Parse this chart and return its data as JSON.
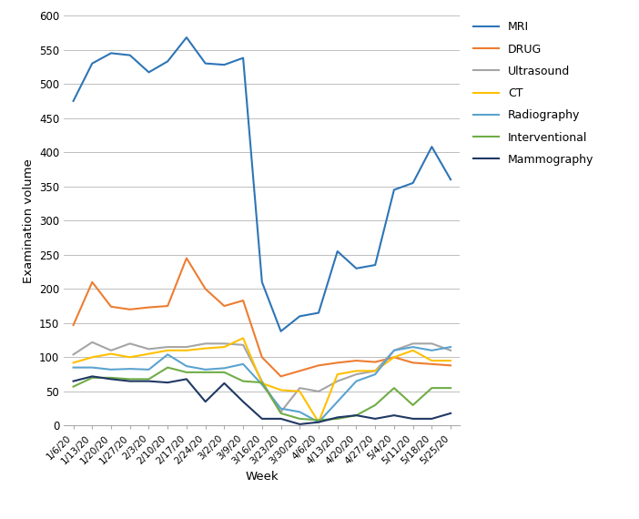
{
  "weeks": [
    "1/6/20",
    "1/13/20",
    "1/20/20",
    "1/27/20",
    "2/3/20",
    "2/10/20",
    "2/17/20",
    "2/24/20",
    "3/2/20",
    "3/9/20",
    "3/16/20",
    "3/23/20",
    "3/30/20",
    "4/6/20",
    "4/13/20",
    "4/20/20",
    "4/27/20",
    "5/4/20",
    "5/11/20",
    "5/18/20",
    "5/25/20"
  ],
  "MRI": [
    475,
    530,
    545,
    542,
    517,
    533,
    568,
    530,
    528,
    538,
    210,
    138,
    160,
    165,
    255,
    230,
    235,
    345,
    355,
    408,
    360
  ],
  "DRUG": [
    147,
    210,
    174,
    170,
    173,
    175,
    245,
    200,
    175,
    183,
    100,
    72,
    80,
    88,
    92,
    95,
    93,
    100,
    92,
    90,
    88
  ],
  "Ultrasound": [
    104,
    122,
    110,
    120,
    112,
    115,
    115,
    120,
    120,
    118,
    65,
    20,
    55,
    50,
    65,
    75,
    80,
    110,
    120,
    120,
    110
  ],
  "CT": [
    92,
    100,
    105,
    100,
    105,
    110,
    110,
    113,
    115,
    128,
    62,
    52,
    50,
    5,
    75,
    80,
    80,
    100,
    110,
    95,
    95
  ],
  "Radiography": [
    85,
    85,
    82,
    83,
    82,
    104,
    87,
    82,
    84,
    90,
    60,
    25,
    20,
    5,
    35,
    65,
    75,
    110,
    115,
    110,
    115
  ],
  "Interventional": [
    57,
    70,
    70,
    68,
    68,
    85,
    78,
    78,
    78,
    65,
    63,
    18,
    10,
    8,
    10,
    15,
    30,
    55,
    30,
    55,
    55
  ],
  "Mammography": [
    65,
    72,
    68,
    65,
    65,
    63,
    68,
    35,
    62,
    35,
    10,
    10,
    2,
    5,
    12,
    15,
    10,
    15,
    10,
    10,
    18
  ],
  "colors": {
    "MRI": "#2E75B6",
    "DRUG": "#ED7D31",
    "Ultrasound": "#A5A5A5",
    "CT": "#FFC000",
    "Radiography": "#5BA3D0",
    "Interventional": "#70AD47",
    "Mammography": "#203864"
  },
  "ylabel": "Examination volume",
  "xlabel": "Week",
  "ylim": [
    0,
    600
  ],
  "yticks": [
    0,
    50,
    100,
    150,
    200,
    250,
    300,
    350,
    400,
    450,
    500,
    550,
    600
  ],
  "figsize": [
    7.02,
    5.7
  ],
  "dpi": 100
}
